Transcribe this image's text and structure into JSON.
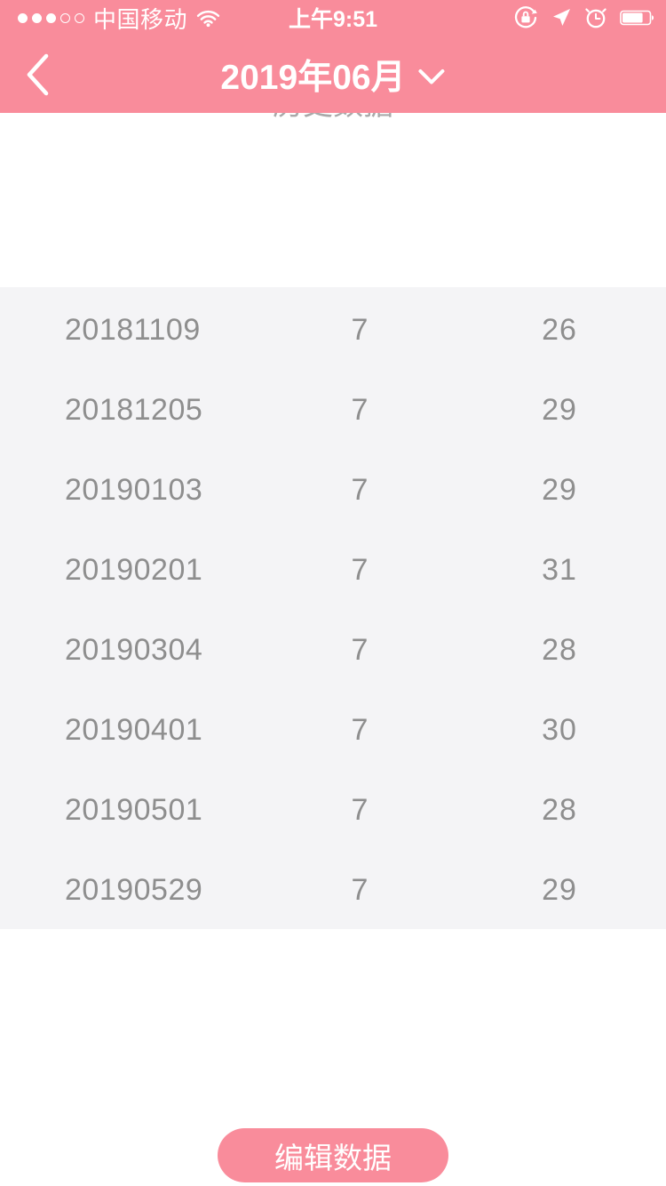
{
  "status_bar": {
    "carrier": "中国移动",
    "time": "上午9:51",
    "signal_filled": 3,
    "signal_total": 5,
    "battery_percent": 78
  },
  "nav": {
    "title": "2019年06月"
  },
  "content": {
    "heading": "历史数据"
  },
  "history_table": {
    "rows": [
      {
        "date": "20181109",
        "period_days": "7",
        "cycle_days": "26"
      },
      {
        "date": "20181205",
        "period_days": "7",
        "cycle_days": "29"
      },
      {
        "date": "20190103",
        "period_days": "7",
        "cycle_days": "29"
      },
      {
        "date": "20190201",
        "period_days": "7",
        "cycle_days": "31"
      },
      {
        "date": "20190304",
        "period_days": "7",
        "cycle_days": "28"
      },
      {
        "date": "20190401",
        "period_days": "7",
        "cycle_days": "30"
      },
      {
        "date": "20190501",
        "period_days": "7",
        "cycle_days": "28"
      },
      {
        "date": "20190529",
        "period_days": "7",
        "cycle_days": "29"
      }
    ]
  },
  "footer": {
    "edit_button_label": "编辑数据"
  },
  "colors": {
    "header_pink": "#f98c9b",
    "button_pink": "#f98c9b",
    "panel_gray": "#f4f4f6",
    "row_text_gray": "#8e8e8e",
    "heading_gray": "#a9a9a9"
  }
}
